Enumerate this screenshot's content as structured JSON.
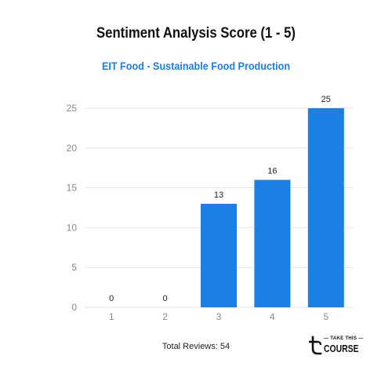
{
  "chart_data": {
    "type": "bar",
    "title": "Sentiment Analysis Score (1 - 5)",
    "subtitle": "EIT Food - Sustainable Food Production",
    "categories": [
      "1",
      "2",
      "3",
      "4",
      "5"
    ],
    "values": [
      0,
      0,
      13,
      16,
      25
    ],
    "data_labels": [
      "0",
      "0",
      "13",
      "16",
      "25"
    ],
    "y_ticks": [
      "0",
      "5",
      "10",
      "15",
      "20",
      "25"
    ],
    "ylim": [
      0,
      25
    ],
    "xlabel": "",
    "ylabel": "",
    "grid": true,
    "bar_color": "#1a7fe6"
  },
  "footer": {
    "total_reviews": "Total Reviews: 54"
  },
  "logo": {
    "line1": "TAKE THIS",
    "line2": "COURSE",
    "icon": "t-logo-icon"
  },
  "colors": {
    "title": "#111111",
    "subtitle": "#1a7fe6",
    "grid": "#e6e6e6",
    "tick": "#888888"
  }
}
